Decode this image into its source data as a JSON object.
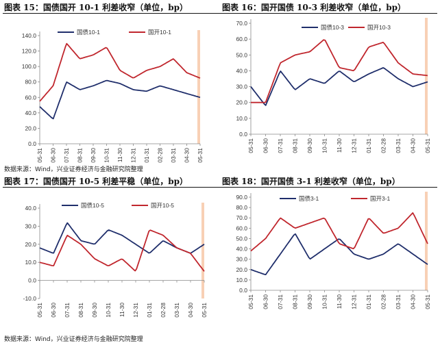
{
  "figure_titles": [
    "图表 15：国债国开 10-1 利差收窄（单位，bp）",
    "图表 16：国开国债 10-3 利差收窄（单位，bp）",
    "图表 17：国债国开 10-5 利差平稳（单位，bp）",
    "图表 18：国开国债 3-1 利差收窄（单位，bp）"
  ],
  "source_note": "数据来源：Wind，兴业证券经济与金融研究院整理",
  "colors": {
    "series_1": "#1f2e6b",
    "series_2": "#c0262d",
    "highlight": "#f4b183"
  },
  "x_tick_labels": [
    "05-31",
    "06-30",
    "07-31",
    "08-31",
    "09-30",
    "10-31",
    "11-30",
    "12-31",
    "01-31",
    "02-28",
    "03-31",
    "04-30",
    "05-31"
  ],
  "chart_data": [
    {
      "type": "line",
      "title": "图表 15：国债国开 10-1 利差收窄（单位，bp）",
      "x": [
        "05-31",
        "06-30",
        "07-31",
        "08-31",
        "09-30",
        "10-31",
        "11-30",
        "12-31",
        "01-31",
        "02-28",
        "03-31",
        "04-30",
        "05-31"
      ],
      "ylim": [
        0,
        140
      ],
      "yticks": [
        "0.0",
        "20.0",
        "40.0",
        "60.0",
        "80.0",
        "100.0",
        "120.0",
        "140.0"
      ],
      "legend": "top-left",
      "series": [
        {
          "name": "国债10-1",
          "values": [
            48,
            32,
            80,
            70,
            75,
            82,
            78,
            70,
            68,
            75,
            70,
            65,
            60
          ]
        },
        {
          "name": "国开10-1",
          "values": [
            55,
            75,
            130,
            110,
            115,
            125,
            95,
            85,
            95,
            100,
            110,
            92,
            85
          ]
        }
      ]
    },
    {
      "type": "line",
      "title": "图表 16：国开国债 10-3 利差收窄（单位，bp）",
      "x": [
        "05-31",
        "06-30",
        "07-31",
        "08-31",
        "09-30",
        "10-31",
        "11-30",
        "12-31",
        "01-31",
        "02-28",
        "03-31",
        "04-30",
        "05-31"
      ],
      "ylim": [
        0,
        70
      ],
      "yticks": [
        "0.0",
        "10.0",
        "20.0",
        "30.0",
        "40.0",
        "50.0",
        "60.0",
        "70.0"
      ],
      "legend": "top-center",
      "series": [
        {
          "name": "国债10-3",
          "values": [
            30,
            18,
            40,
            28,
            35,
            32,
            40,
            33,
            38,
            42,
            35,
            30,
            33
          ]
        },
        {
          "name": "国开10-3",
          "values": [
            20,
            20,
            45,
            50,
            52,
            60,
            42,
            40,
            55,
            58,
            45,
            38,
            37
          ]
        }
      ]
    },
    {
      "type": "line",
      "title": "图表 17：国债国开 10-5 利差平稳（单位，bp）",
      "x": [
        "05-31",
        "06-30",
        "07-31",
        "08-31",
        "09-30",
        "10-31",
        "11-30",
        "12-31",
        "01-31",
        "02-28",
        "03-31",
        "04-30",
        "05-31"
      ],
      "ylim": [
        -10,
        40
      ],
      "yticks": [
        "-10.0",
        "0.0",
        "10.0",
        "20.0",
        "30.0",
        "40.0"
      ],
      "legend": "top-left",
      "series": [
        {
          "name": "国债10-5",
          "values": [
            18,
            15,
            32,
            22,
            20,
            28,
            25,
            20,
            15,
            22,
            18,
            15,
            20
          ]
        },
        {
          "name": "国开10-5",
          "values": [
            10,
            8,
            25,
            20,
            12,
            8,
            12,
            5,
            28,
            25,
            18,
            15,
            5
          ]
        }
      ]
    },
    {
      "type": "line",
      "title": "图表 18：国开国债 3-1 利差收窄（单位，bp）",
      "x": [
        "05-31",
        "06-30",
        "07-31",
        "08-31",
        "09-30",
        "10-31",
        "11-30",
        "12-31",
        "01-31",
        "02-28",
        "03-31",
        "04-30",
        "05-31"
      ],
      "ylim": [
        0,
        90
      ],
      "yticks": [
        "0.0",
        "10.0",
        "20.0",
        "30.0",
        "40.0",
        "50.0",
        "60.0",
        "70.0",
        "80.0",
        "90.0"
      ],
      "legend": "top-center",
      "series": [
        {
          "name": "国债3-1",
          "values": [
            20,
            15,
            35,
            55,
            30,
            40,
            50,
            35,
            30,
            35,
            45,
            35,
            25
          ]
        },
        {
          "name": "国开3-1",
          "values": [
            38,
            50,
            70,
            60,
            65,
            70,
            45,
            40,
            70,
            55,
            60,
            75,
            45
          ]
        }
      ]
    }
  ]
}
